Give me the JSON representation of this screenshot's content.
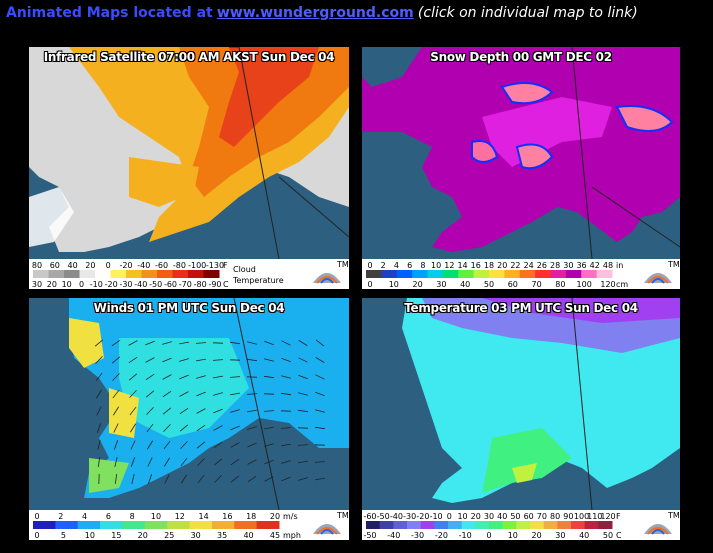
{
  "header": {
    "lead": "Animated Maps located at",
    "link": "www.wunderground.com",
    "note": "(click on individual map to link)"
  },
  "colors": {
    "water": "#2d5f80",
    "land": "#cfeaf2",
    "border": "#222222",
    "link": "#4f5cff"
  },
  "maps": [
    {
      "id": "infrared",
      "title": "Infrared Satellite 07:00 AM AKST Sun Dec 04",
      "legend": {
        "top_ticks": [
          "80",
          "60",
          "40",
          "20",
          "0",
          "-20",
          "-40",
          "-60",
          "-80",
          "-100",
          "-130"
        ],
        "top_unit": "F",
        "bottom_ticks": [
          "30",
          "20",
          "10",
          "0",
          "-10",
          "-20",
          "-30",
          "-40",
          "-50",
          "-60",
          "-70",
          "-80",
          "-90"
        ],
        "bottom_unit": "C",
        "caption1": "Cloud",
        "caption2": "Temperature",
        "logo": "TM"
      }
    },
    {
      "id": "snow",
      "title": "Snow Depth 00 GMT DEC 02",
      "legend": {
        "top_ticks": [
          "0",
          "2",
          "4",
          "6",
          "8",
          "10",
          "12",
          "14",
          "16",
          "18",
          "20",
          "22",
          "24",
          "26",
          "28",
          "30",
          "36",
          "42",
          "48"
        ],
        "top_unit": "in",
        "bottom_ticks": [
          "0",
          "10",
          "20",
          "30",
          "40",
          "50",
          "60",
          "70",
          "80",
          "100",
          "120"
        ],
        "bottom_unit": "cm",
        "logo": "TM"
      }
    },
    {
      "id": "winds",
      "title": "Winds 01 PM UTC Sun Dec 04",
      "legend": {
        "top_ticks": [
          "0",
          "2",
          "4",
          "6",
          "8",
          "10",
          "12",
          "14",
          "16",
          "18",
          "20"
        ],
        "top_unit": "m/s",
        "bottom_ticks": [
          "0",
          "5",
          "10",
          "15",
          "20",
          "25",
          "30",
          "35",
          "40",
          "45"
        ],
        "bottom_unit": "mph",
        "logo": "TM"
      }
    },
    {
      "id": "temperature",
      "title": "Temperature 03 PM UTC Sun Dec 04",
      "legend": {
        "top_ticks": [
          "-60",
          "-50",
          "-40",
          "-30",
          "-20",
          "-10",
          "0",
          "10",
          "20",
          "30",
          "40",
          "50",
          "60",
          "70",
          "80",
          "90",
          "100",
          "110",
          "120"
        ],
        "top_unit": "F",
        "bottom_ticks": [
          "-50",
          "-40",
          "-30",
          "-20",
          "-10",
          "0",
          "10",
          "20",
          "30",
          "40",
          "50"
        ],
        "bottom_unit": "C",
        "logo": "TM"
      }
    }
  ]
}
